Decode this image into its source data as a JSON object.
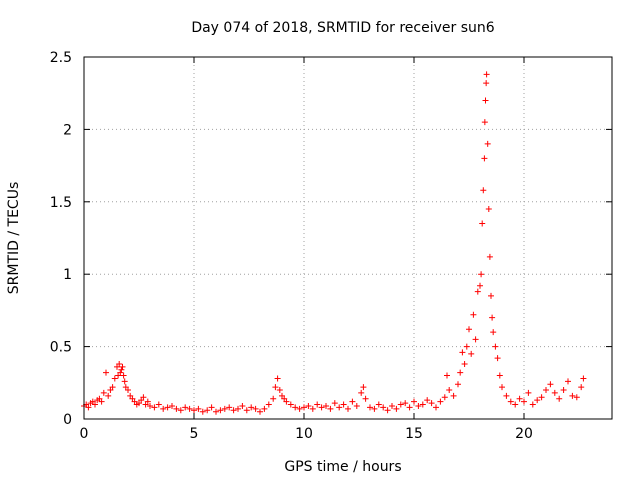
{
  "chart_data": {
    "type": "scatter",
    "title": "Day 074 of 2018, SRMTID for receiver sun6",
    "xlabel": "GPS time / hours",
    "ylabel": "SRMTID / TECUs",
    "xlim": [
      0,
      24
    ],
    "ylim": [
      0,
      2.5
    ],
    "x_ticks": [
      0,
      5,
      10,
      15,
      20
    ],
    "x_tick_labels": [
      "0",
      "5",
      "10",
      "15",
      "20"
    ],
    "y_ticks": [
      0,
      0.5,
      1,
      1.5,
      2,
      2.5
    ],
    "y_tick_labels": [
      "0",
      "0.5",
      "1",
      "1.5",
      "2",
      "2.5"
    ],
    "grid": true,
    "marker": "+",
    "color": "#ff0000",
    "series": [
      {
        "name": "SRMTID",
        "x": [
          0.0,
          0.1,
          0.2,
          0.3,
          0.4,
          0.5,
          0.6,
          0.7,
          0.8,
          0.9,
          1.0,
          1.1,
          1.2,
          1.3,
          1.4,
          1.5,
          1.55,
          1.6,
          1.65,
          1.7,
          1.75,
          1.8,
          1.85,
          1.9,
          2.0,
          2.1,
          2.2,
          2.3,
          2.4,
          2.5,
          2.6,
          2.7,
          2.8,
          2.9,
          3.0,
          3.2,
          3.4,
          3.6,
          3.8,
          4.0,
          4.2,
          4.4,
          4.6,
          4.8,
          5.0,
          5.2,
          5.4,
          5.6,
          5.8,
          6.0,
          6.2,
          6.4,
          6.6,
          6.8,
          7.0,
          7.2,
          7.4,
          7.6,
          7.8,
          8.0,
          8.2,
          8.4,
          8.6,
          8.7,
          8.8,
          8.9,
          9.0,
          9.1,
          9.2,
          9.4,
          9.6,
          9.8,
          10.0,
          10.2,
          10.4,
          10.6,
          10.8,
          11.0,
          11.2,
          11.4,
          11.6,
          11.8,
          12.0,
          12.2,
          12.4,
          12.6,
          12.7,
          12.8,
          13.0,
          13.2,
          13.4,
          13.6,
          13.8,
          14.0,
          14.2,
          14.4,
          14.6,
          14.8,
          15.0,
          15.2,
          15.4,
          15.6,
          15.8,
          16.0,
          16.2,
          16.4,
          16.5,
          16.6,
          16.8,
          17.0,
          17.1,
          17.2,
          17.3,
          17.4,
          17.5,
          17.6,
          17.7,
          17.8,
          17.9,
          18.0,
          18.05,
          18.1,
          18.15,
          18.2,
          18.22,
          18.25,
          18.28,
          18.3,
          18.35,
          18.4,
          18.45,
          18.5,
          18.55,
          18.6,
          18.7,
          18.8,
          18.9,
          19.0,
          19.2,
          19.4,
          19.6,
          19.8,
          20.0,
          20.2,
          20.4,
          20.6,
          20.8,
          21.0,
          21.2,
          21.4,
          21.6,
          21.8,
          22.0,
          22.2,
          22.4,
          22.6,
          22.7
        ],
        "y": [
          0.09,
          0.1,
          0.08,
          0.11,
          0.12,
          0.1,
          0.13,
          0.14,
          0.12,
          0.18,
          0.32,
          0.16,
          0.2,
          0.22,
          0.28,
          0.36,
          0.3,
          0.38,
          0.32,
          0.34,
          0.36,
          0.3,
          0.26,
          0.22,
          0.2,
          0.16,
          0.14,
          0.12,
          0.1,
          0.11,
          0.13,
          0.15,
          0.1,
          0.12,
          0.09,
          0.08,
          0.1,
          0.07,
          0.08,
          0.09,
          0.07,
          0.06,
          0.08,
          0.07,
          0.06,
          0.07,
          0.05,
          0.06,
          0.08,
          0.05,
          0.06,
          0.07,
          0.08,
          0.06,
          0.07,
          0.09,
          0.06,
          0.08,
          0.07,
          0.05,
          0.07,
          0.1,
          0.14,
          0.22,
          0.28,
          0.2,
          0.16,
          0.14,
          0.12,
          0.1,
          0.08,
          0.07,
          0.08,
          0.09,
          0.07,
          0.1,
          0.08,
          0.09,
          0.07,
          0.11,
          0.08,
          0.1,
          0.07,
          0.12,
          0.09,
          0.18,
          0.22,
          0.14,
          0.08,
          0.07,
          0.1,
          0.08,
          0.06,
          0.09,
          0.07,
          0.1,
          0.11,
          0.08,
          0.12,
          0.09,
          0.1,
          0.13,
          0.11,
          0.08,
          0.12,
          0.15,
          0.3,
          0.2,
          0.16,
          0.24,
          0.32,
          0.46,
          0.38,
          0.5,
          0.62,
          0.45,
          0.72,
          0.55,
          0.88,
          0.92,
          1.0,
          1.35,
          1.58,
          1.8,
          2.05,
          2.2,
          2.32,
          2.38,
          1.9,
          1.45,
          1.12,
          0.85,
          0.7,
          0.6,
          0.5,
          0.42,
          0.3,
          0.22,
          0.16,
          0.12,
          0.1,
          0.14,
          0.12,
          0.18,
          0.1,
          0.13,
          0.15,
          0.2,
          0.24,
          0.18,
          0.14,
          0.2,
          0.26,
          0.16,
          0.15,
          0.22,
          0.28
        ]
      }
    ]
  }
}
